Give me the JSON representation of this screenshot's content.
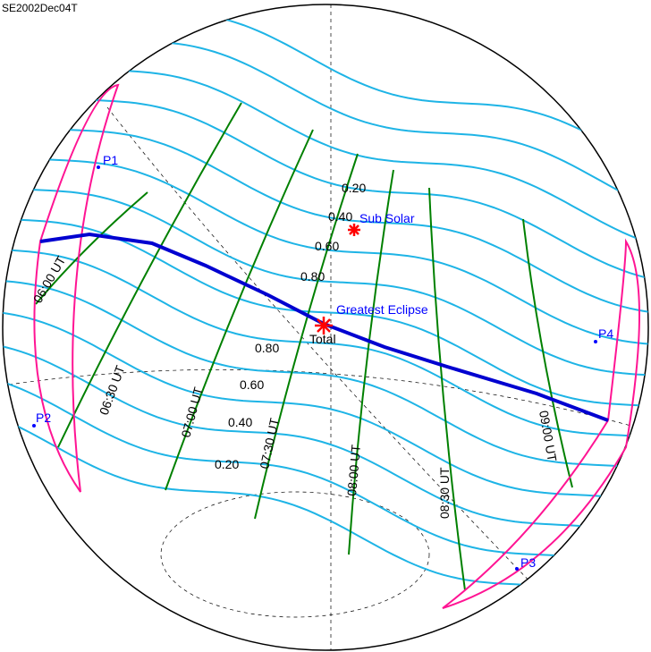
{
  "title": "SE2002Dec04T",
  "colors": {
    "magnitude": "#1eb4e6",
    "time": "#008000",
    "central_path": "#0000d0",
    "limits": "#ff1493",
    "marker": "#ff0000",
    "label_blue": "#0000ff"
  },
  "labels": {
    "sub_solar": "Sub Solar",
    "greatest_eclipse": "Greatest Eclipse",
    "total": "Total"
  },
  "points": [
    "P1",
    "P2",
    "P3",
    "P4"
  ],
  "magnitudes_north": [
    "0.20",
    "0.40",
    "0.60",
    "0.80"
  ],
  "magnitudes_south": [
    "0.80",
    "0.60",
    "0.40",
    "0.20"
  ],
  "times": [
    "06:00 UT",
    "06:30 UT",
    "07:00 UT",
    "07:30 UT",
    "08:00 UT",
    "08:30 UT",
    "09:00 UT"
  ]
}
